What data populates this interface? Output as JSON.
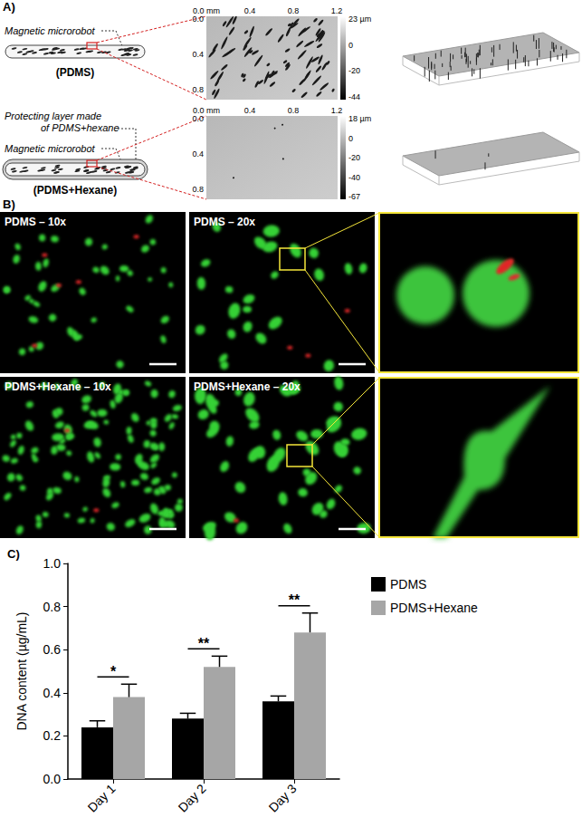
{
  "panel_a": {
    "label": "A)",
    "rows": [
      {
        "robot_label": "Magnetic microrobot",
        "layer_label": [],
        "caption": "(PDMS)",
        "x_ticks": [
          "0.0 mm",
          "0.4",
          "0.8",
          "1.2"
        ],
        "y_ticks": [
          "0.0",
          "0.4",
          "0.8"
        ],
        "colorbar_ticks": [
          "23 µm",
          "0",
          "-20",
          "-44"
        ]
      },
      {
        "robot_label": "Magnetic microrobot",
        "layer_label": [
          "Protecting layer made",
          "of PDMS+hexane"
        ],
        "caption": "(PDMS+Hexane)",
        "x_ticks": [
          "0.0 mm",
          "0.4",
          "0.8",
          "1.2"
        ],
        "y_ticks": [
          "0.0",
          "0.4",
          "0.8"
        ],
        "colorbar_ticks": [
          "18 µm",
          "0",
          "-20",
          "-40",
          "-67"
        ]
      }
    ]
  },
  "panel_b": {
    "label": "B)",
    "images": [
      "PDMS – 10x",
      "PDMS – 20x",
      "PDMS+Hexane – 10x",
      "PDMS+Hexane – 20x"
    ]
  },
  "chart_data": {
    "type": "bar",
    "title": "C)",
    "ylabel": "DNA content (µg/mL)",
    "categories": [
      "Day 1",
      "Day 2",
      "Day 3"
    ],
    "series": [
      {
        "name": "PDMS",
        "color": "#000000",
        "values": [
          0.24,
          0.28,
          0.36
        ],
        "errors": [
          0.03,
          0.025,
          0.025
        ]
      },
      {
        "name": "PDMS+Hexane",
        "color": "#a6a6a6",
        "values": [
          0.38,
          0.52,
          0.68
        ],
        "errors": [
          0.06,
          0.05,
          0.09
        ]
      }
    ],
    "ylim": [
      0,
      1
    ],
    "yticks": [
      {
        "value": 0,
        "label": "0.0"
      },
      0.2,
      0.4,
      0.6,
      0.8,
      {
        "value": 1,
        "label": "1.0"
      }
    ],
    "grid": false,
    "legend": "right",
    "annotations": [
      {
        "category": "Day 1",
        "text": "*"
      },
      {
        "category": "Day 2",
        "text": "**"
      },
      {
        "category": "Day 3",
        "text": "**"
      }
    ]
  }
}
